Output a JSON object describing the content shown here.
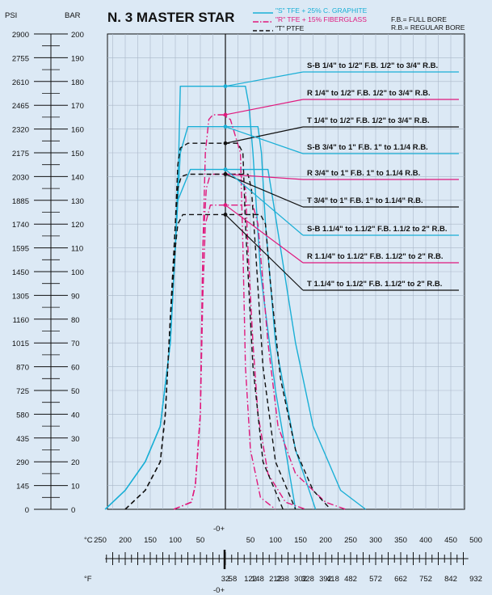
{
  "header": {
    "title": "N. 3 MASTER STAR",
    "psi_header": "PSI",
    "bar_header": "BAR",
    "bore_full": "F.B.= FULL BORE",
    "bore_regular": "R.B.= REGULAR BORE"
  },
  "legend": [
    {
      "label": "\"S\" TFE + 25% C. GRAPHITE",
      "color": "#1aafd6",
      "dash": "solid"
    },
    {
      "label": "\"R\" TFE + 15% FIBERGLASS",
      "color": "#e0197d",
      "dash": "dashdot"
    },
    {
      "label": "\"T\" PTFE",
      "color": "#111111",
      "dash": "dashed"
    }
  ],
  "bottom_axis": {
    "celsius_unit": "°C",
    "fahrenheit_unit": "°F",
    "zero_top": "-0+",
    "zero_bottom": "-0+",
    "celsius_ticks": [
      "250",
      "200",
      "150",
      "100",
      "50",
      "50",
      "100",
      "150",
      "200",
      "250",
      "300",
      "350",
      "400",
      "450",
      "500"
    ],
    "fahrenheit_ticks": [
      "418",
      "328",
      "238",
      "148",
      "58",
      "32",
      "122",
      "212",
      "302",
      "392",
      "482",
      "572",
      "662",
      "752",
      "842",
      "932"
    ]
  },
  "chart_data": {
    "type": "line",
    "x_unit": "°C",
    "y_unit": "bar",
    "xlim": [
      -250,
      500
    ],
    "ylim": [
      0,
      200
    ],
    "y_ticks_psi": [
      "2900",
      "2755",
      "2610",
      "2465",
      "2320",
      "2175",
      "2030",
      "1885",
      "1740",
      "1595",
      "1450",
      "1305",
      "1160",
      "1015",
      "870",
      "725",
      "580",
      "435",
      "290",
      "145",
      "0"
    ],
    "y_ticks_bar": [
      "200",
      "190",
      "180",
      "170",
      "160",
      "150",
      "140",
      "130",
      "120",
      "110",
      "100",
      "90",
      "80",
      "70",
      "60",
      "50",
      "40",
      "30",
      "20",
      "10",
      "0"
    ],
    "grid": true,
    "series": [
      {
        "name": "S-B 1/4\" to 1/2\" F.B. 1/2\" to 3/4\" R.B.",
        "material": "S",
        "color": "#1aafd6",
        "dash": "solid",
        "x": [
          -240,
          -200,
          -160,
          -130,
          -110,
          -100,
          -93,
          -90,
          40,
          47,
          55,
          70,
          100,
          140
        ],
        "y": [
          0,
          8,
          20,
          35,
          70,
          110,
          150,
          178,
          178,
          170,
          150,
          100,
          50,
          0
        ]
      },
      {
        "name": "S-B 3/4\" to 1\" F.B. 1\" to 1.1/4\" R.B.",
        "material": "S",
        "color": "#1aafd6",
        "dash": "solid",
        "x": [
          -240,
          -200,
          -160,
          -130,
          -110,
          -100,
          -90,
          -75,
          65,
          72,
          80,
          100,
          140,
          180
        ],
        "y": [
          0,
          8,
          20,
          35,
          70,
          110,
          150,
          161,
          161,
          150,
          120,
          70,
          25,
          0
        ]
      },
      {
        "name": "S-B 1.1/4\" to 1.1/2\" F.B. 1.1/2 to 2\" R.B.",
        "material": "S",
        "color": "#1aafd6",
        "dash": "solid",
        "x": [
          -240,
          -200,
          -160,
          -130,
          -110,
          -100,
          -95,
          -70,
          85,
          95,
          110,
          140,
          175,
          230,
          280
        ],
        "y": [
          0,
          8,
          20,
          35,
          70,
          110,
          130,
          143,
          143,
          130,
          110,
          70,
          35,
          8,
          0
        ]
      },
      {
        "name": "R 1/4\" to 1/2\" F.B. 1/2\" to 3/4\" R.B.",
        "material": "R",
        "color": "#e0197d",
        "dash": "dashdot",
        "x": [
          -103,
          -68,
          -60,
          -50,
          -45,
          -40,
          -33,
          -25,
          -5,
          10,
          30,
          35,
          40,
          50,
          70,
          100
        ],
        "y": [
          0,
          3,
          10,
          40,
          110,
          150,
          164,
          166,
          166,
          164,
          150,
          110,
          60,
          25,
          5,
          0
        ]
      },
      {
        "name": "R 3/4\" to 1\" F.B. 1\" to 1.1/4 R.B.",
        "material": "R",
        "color": "#e0197d",
        "dash": "dashdot",
        "x": [
          -103,
          -68,
          -60,
          -50,
          -45,
          -38,
          -30,
          -5,
          30,
          40,
          45,
          55,
          65,
          85,
          120,
          160
        ],
        "y": [
          0,
          3,
          10,
          40,
          110,
          135,
          141,
          141,
          141,
          135,
          110,
          70,
          40,
          15,
          3,
          0
        ]
      },
      {
        "name": "R 1.1/4\" to 1.1/2\" F.B. 1.1/2\" to 2\" R.B.",
        "material": "R",
        "color": "#e0197d",
        "dash": "dashdot",
        "x": [
          -103,
          -68,
          -60,
          -50,
          -45,
          -40,
          -30,
          -5,
          55,
          65,
          75,
          85,
          105,
          140,
          200,
          240
        ],
        "y": [
          0,
          3,
          10,
          40,
          90,
          120,
          128,
          128,
          128,
          120,
          95,
          70,
          35,
          15,
          3,
          0
        ]
      },
      {
        "name": "T 1/4\" to 1/2\" F.B. 1/2\" to 3/4\" R.B.",
        "material": "T",
        "color": "#111111",
        "dash": "dashed",
        "x": [
          -200,
          -160,
          -130,
          -120,
          -110,
          -100,
          -95,
          -90,
          -75,
          25,
          35,
          40,
          55,
          75,
          115
        ],
        "y": [
          0,
          8,
          20,
          40,
          80,
          120,
          145,
          152,
          154,
          154,
          150,
          120,
          60,
          20,
          0
        ]
      },
      {
        "name": "T 3/4\" to 1\" F.B. 1\" to 1.1/4\" R.B.",
        "material": "T",
        "color": "#111111",
        "dash": "dashed",
        "x": [
          -200,
          -160,
          -130,
          -120,
          -110,
          -100,
          -95,
          -88,
          -75,
          45,
          52,
          60,
          75,
          100,
          140
        ],
        "y": [
          0,
          8,
          20,
          40,
          80,
          120,
          135,
          140,
          141,
          141,
          135,
          110,
          60,
          20,
          0
        ]
      },
      {
        "name": "T 1.1/4\" to 1.1/2\" F.B. 1.1/2\" to 2\" R.B.",
        "material": "T",
        "color": "#111111",
        "dash": "dashed",
        "x": [
          -200,
          -160,
          -130,
          -120,
          -110,
          -100,
          -95,
          -85,
          -70,
          70,
          80,
          90,
          110,
          140,
          175,
          210
        ],
        "y": [
          0,
          8,
          20,
          40,
          80,
          110,
          120,
          124,
          124,
          124,
          120,
          95,
          55,
          25,
          8,
          0
        ]
      }
    ],
    "callouts": [
      {
        "label": "S-B 1/4\" to 1/2\" F.B. 1/2\" to 3/4\" R.B.",
        "point": [
          0,
          178
        ]
      },
      {
        "label": "R 1/4\" to 1/2\" F.B.  1/2\" to 3/4\" R.B.",
        "point": [
          0,
          166
        ]
      },
      {
        "label": "T  1/4\" to 1/2\" F.B. 1/2\" to 3/4\" R.B.",
        "point": [
          0,
          154
        ]
      },
      {
        "label": "S-B 3/4\" to 1\" F.B. 1\" to 1.1/4 R.B.",
        "point": [
          0,
          161
        ]
      },
      {
        "label": "R 3/4\" to 1\" F.B. 1\" to 1.1/4 R.B.",
        "point": [
          0,
          141
        ]
      },
      {
        "label": "T 3/4\" to 1\" F.B. 1\" to 1.1/4\" R.B.",
        "point": [
          0,
          141
        ]
      },
      {
        "label": "S-B 1.1/4\" to 1.1/2\" F.B. 1.1/2 to 2\" R.B.",
        "point": [
          0,
          143
        ]
      },
      {
        "label": "R 1.1/4\" to 1.1/2\" F.B. 1.1/2\" to 2\" R.B.",
        "point": [
          0,
          128
        ]
      },
      {
        "label": "T 1.1/4\" to 1.1/2\" F.B. 1.1/2\" to 2\" R.B.",
        "point": [
          0,
          124
        ]
      }
    ]
  }
}
